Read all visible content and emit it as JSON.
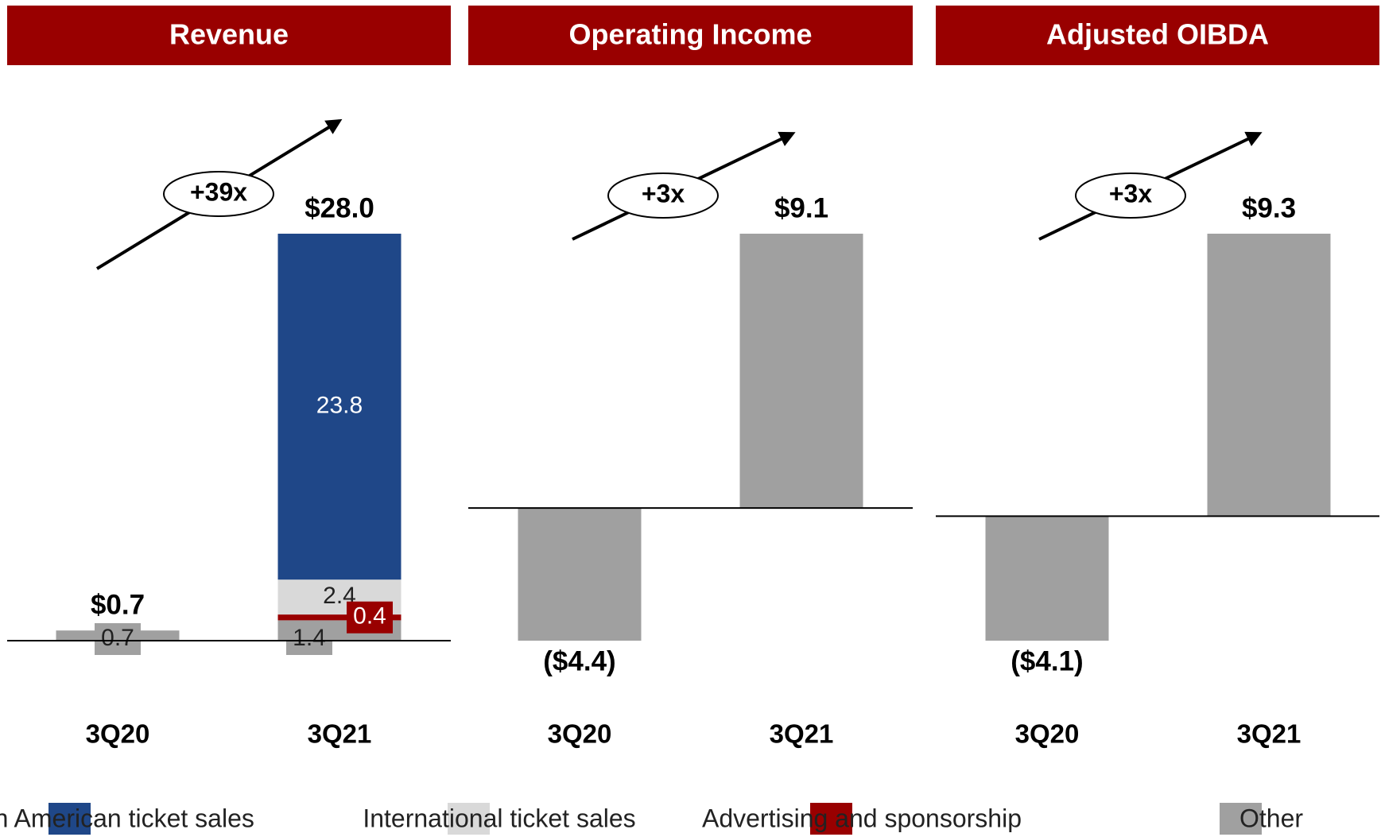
{
  "chart_data": [
    {
      "type": "stacked_bar",
      "title": "Revenue",
      "annotation": "+39x",
      "categories": [
        "3Q20",
        "3Q21"
      ],
      "series": [
        {
          "name": "Other",
          "color": "#a0a0a0",
          "values": [
            0.7,
            1.4
          ]
        },
        {
          "name": "Advertising and sponsorship",
          "color": "#990000",
          "values": [
            null,
            0.4
          ]
        },
        {
          "name": "International ticket sales",
          "color": "#d9d9d9",
          "values": [
            null,
            2.4
          ]
        },
        {
          "name": "North American ticket sales",
          "color": "#1f4788",
          "values": [
            null,
            23.8
          ]
        }
      ],
      "totals": [
        0.7,
        28.0
      ],
      "total_labels": [
        "$0.7",
        "$28.0"
      ]
    },
    {
      "type": "bar",
      "title": "Operating Income",
      "annotation": "+3x",
      "categories": [
        "3Q20",
        "3Q21"
      ],
      "values": [
        -4.4,
        9.1
      ],
      "value_labels": [
        "($4.4)",
        "$9.1"
      ],
      "color": "#a0a0a0"
    },
    {
      "type": "bar",
      "title": "Adjusted OIBDA",
      "annotation": "+3x",
      "categories": [
        "3Q20",
        "3Q21"
      ],
      "values": [
        -4.1,
        9.3
      ],
      "value_labels": [
        "($4.1)",
        "$9.3"
      ],
      "color": "#a0a0a0"
    }
  ]
}
